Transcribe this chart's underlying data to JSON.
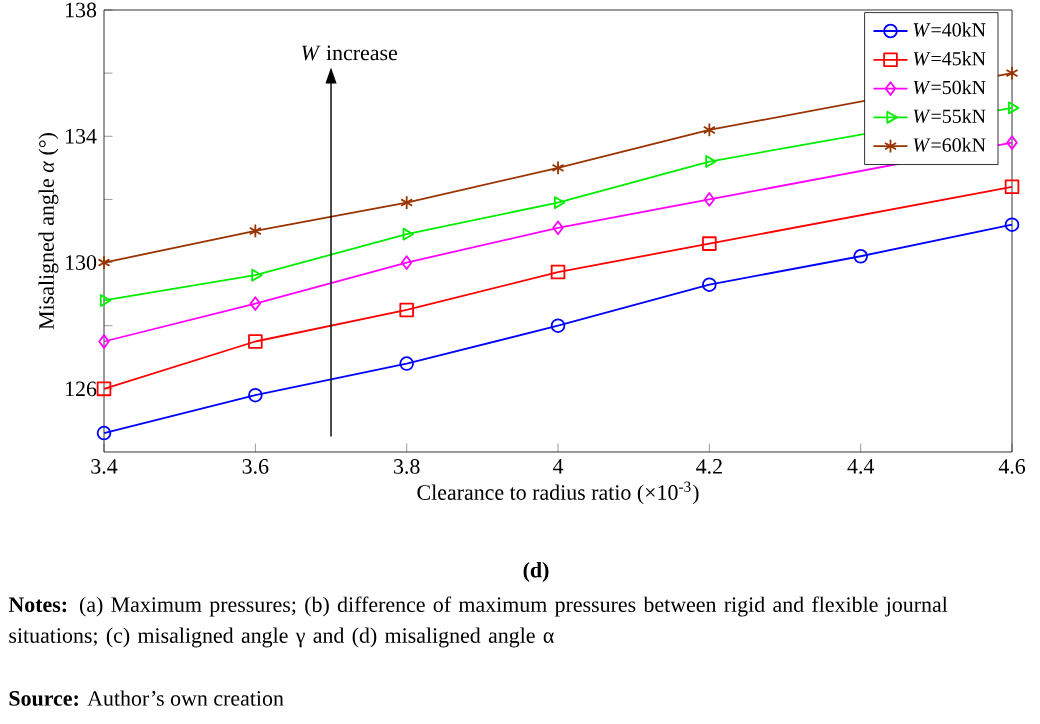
{
  "chart_data": {
    "type": "line",
    "xlabel": "Clearance to radius ratio  (×10$^{-3}$)",
    "ylabel": "Misaligned angle *α* (°)",
    "x": [
      3.4,
      3.6,
      3.8,
      4.0,
      4.2,
      4.4,
      4.6
    ],
    "xlim": [
      3.4,
      4.6
    ],
    "xticks": [
      3.4,
      3.6,
      3.8,
      4,
      4.2,
      4.4,
      4.6
    ],
    "ylim": [
      124,
      138
    ],
    "yticks": [
      126,
      {
        "value": 128,
        "label": null
      },
      130,
      {
        "value": 132,
        "label": null
      },
      134,
      {
        "value": 136,
        "label": null
      },
      138
    ],
    "legend": "top right",
    "line_style": "solid",
    "series": [
      {
        "name": "*W*=40kN",
        "color": "#0000ff",
        "marker": "circle",
        "values": [
          124.6,
          125.8,
          126.8,
          128.0,
          129.3,
          130.2,
          131.2
        ]
      },
      {
        "name": "*W*=45kN",
        "color": "#ff0000",
        "marker": "square",
        "values": [
          126.0,
          127.5,
          128.5,
          129.7,
          130.6,
          null,
          132.4
        ]
      },
      {
        "name": "*W*=50kN",
        "color": "#ff00ff",
        "marker": "diamond",
        "values": [
          127.5,
          128.7,
          130.0,
          131.1,
          132.0,
          null,
          133.8
        ]
      },
      {
        "name": "*W*=55kN",
        "color": "#00ee00",
        "marker": "triangle",
        "values": [
          128.8,
          129.6,
          130.9,
          131.9,
          133.2,
          null,
          134.9
        ]
      },
      {
        "name": "*W*=60kN",
        "color": "#993300",
        "marker": "cross",
        "values": [
          130.0,
          131.0,
          131.9,
          133.0,
          134.2,
          null,
          136.0
        ]
      }
    ],
    "annotations": [
      "*W* increase",
      "**(d)**",
      "**Notes:** (a) Maximum pressures; (b) difference of maximum pressures between rigid and flexible journal situations; (c) misaligned angle γ and (d) misaligned angle α",
      "**Source:** Author’s own creation"
    ]
  }
}
